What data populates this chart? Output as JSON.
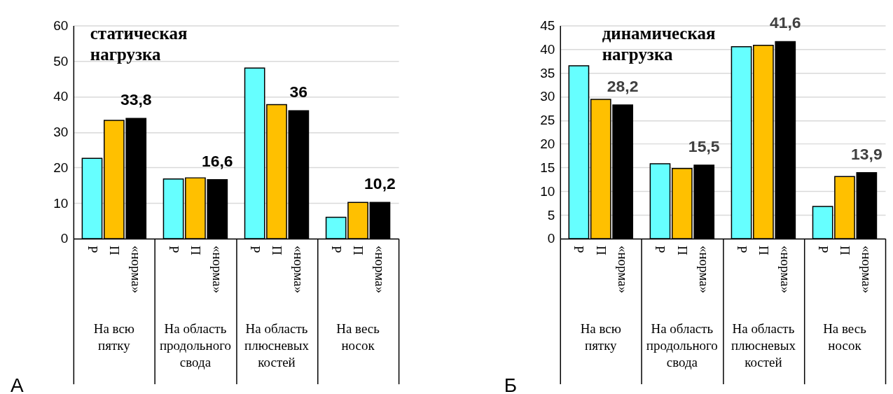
{
  "chart_data": [
    {
      "type": "bar",
      "title": "статическая нагрузка",
      "categories": [
        "На всю пятку",
        "На область продольного свода",
        "На область плюсневых костей",
        "На весь носок"
      ],
      "ylim": [
        0,
        60
      ],
      "yticks": [
        0,
        10,
        20,
        30,
        40,
        50,
        60
      ],
      "grid": "y",
      "annotations": [
        "А"
      ],
      "series": [
        {
          "name": "Р",
          "color": "#66ffff",
          "values": [
            22.6,
            16.8,
            48.0,
            6.0
          ]
        },
        {
          "name": "П",
          "color": "#ffc000",
          "values": [
            33.3,
            17.1,
            37.7,
            10.2
          ]
        },
        {
          "name": "«норма»",
          "color": "#000000",
          "values": [
            33.8,
            16.6,
            36,
            10.2
          ],
          "value_labels": [
            "33,8",
            "16,6",
            "36",
            "10,2"
          ]
        }
      ]
    },
    {
      "type": "bar",
      "title": "динамическая нагрузка",
      "categories": [
        "На всю пятку",
        "На область продольного свода",
        "На область плюсневых костей",
        "На весь носок"
      ],
      "ylim": [
        0,
        45
      ],
      "yticks": [
        0,
        5,
        10,
        15,
        20,
        25,
        30,
        35,
        40,
        45
      ],
      "grid": "y",
      "annotations": [
        "Б"
      ],
      "series": [
        {
          "name": "Р",
          "color": "#66ffff",
          "values": [
            36.5,
            15.8,
            40.5,
            6.8
          ]
        },
        {
          "name": "П",
          "color": "#ffc000",
          "values": [
            29.4,
            14.8,
            40.8,
            13.1
          ]
        },
        {
          "name": "«норма»",
          "color": "#000000",
          "values": [
            28.2,
            15.5,
            41.6,
            13.9
          ],
          "value_labels": [
            "28,2",
            "15,5",
            "41,6",
            "13,9"
          ]
        }
      ]
    }
  ]
}
